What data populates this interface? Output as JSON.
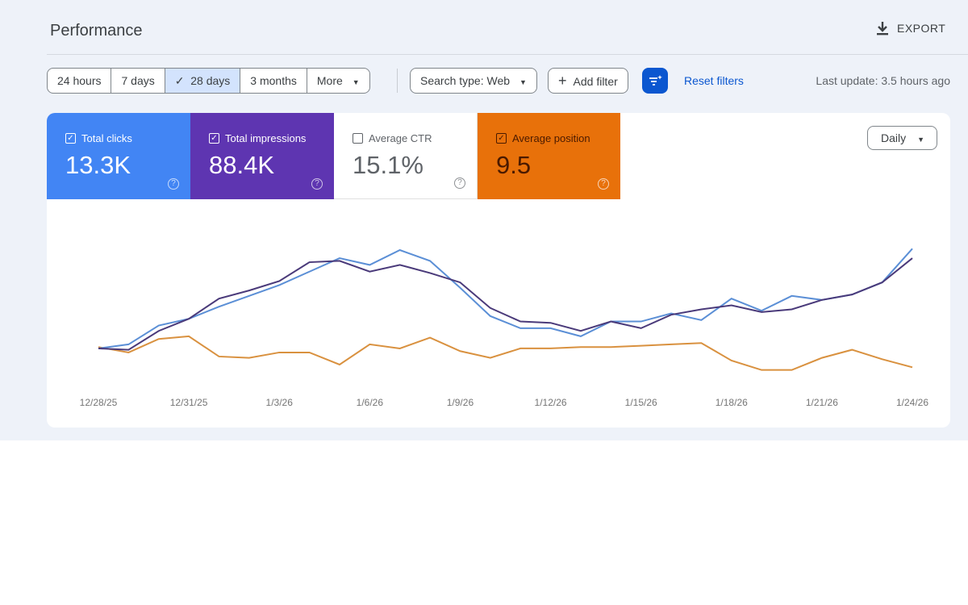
{
  "header": {
    "title": "Performance",
    "export_label": "EXPORT"
  },
  "filters": {
    "ranges": [
      "24 hours",
      "7 days",
      "28 days",
      "3 months",
      "More"
    ],
    "selected_range": "28 days",
    "search_type": "Search type: Web",
    "add_filter": "Add filter",
    "reset_filters": "Reset filters",
    "last_update": "Last update: 3.5 hours ago"
  },
  "metrics": [
    {
      "label": "Total clicks",
      "value": "13.3K",
      "checked": true,
      "color": "#4285f4"
    },
    {
      "label": "Total impressions",
      "value": "88.4K",
      "checked": true,
      "color": "#5e35b1"
    },
    {
      "label": "Average CTR",
      "value": "15.1%",
      "checked": false,
      "color": "#ffffff"
    },
    {
      "label": "Average position",
      "value": "9.5",
      "checked": true,
      "color": "#e8710a"
    }
  ],
  "granularity": "Daily",
  "chart_data": {
    "type": "line",
    "x_tick_labels": [
      "12/28/25",
      "12/31/25",
      "1/3/26",
      "1/6/26",
      "1/9/26",
      "1/12/26",
      "1/15/26",
      "1/18/26",
      "1/21/26",
      "1/24/26"
    ],
    "x_range": [
      "12/28/25",
      "1/24/26"
    ],
    "y_axis_visible": false,
    "ylim": [
      0,
      100
    ],
    "grid": false,
    "series": [
      {
        "metric": "Total clicks",
        "color": "#5b8fd6",
        "values": [
          21,
          24,
          38,
          43,
          52,
          60,
          68,
          78,
          88,
          83,
          94,
          86,
          66,
          45,
          36,
          36,
          30,
          41,
          41,
          47,
          42,
          58,
          49,
          60,
          57,
          61,
          70,
          95
        ]
      },
      {
        "metric": "Total impressions",
        "color": "#4a3a7a",
        "values": [
          21,
          20,
          34,
          43,
          58,
          64,
          71,
          85,
          86,
          78,
          83,
          77,
          70,
          51,
          41,
          40,
          34,
          41,
          36,
          46,
          50,
          53,
          48,
          50,
          57,
          61,
          70,
          88
        ]
      },
      {
        "metric": "Average position",
        "color": "#d9913f",
        "values": [
          22,
          18,
          28,
          30,
          15,
          14,
          18,
          18,
          9,
          24,
          21,
          29,
          19,
          14,
          21,
          21,
          22,
          22,
          23,
          24,
          25,
          12,
          5,
          5,
          14,
          20,
          13,
          7
        ]
      }
    ]
  }
}
